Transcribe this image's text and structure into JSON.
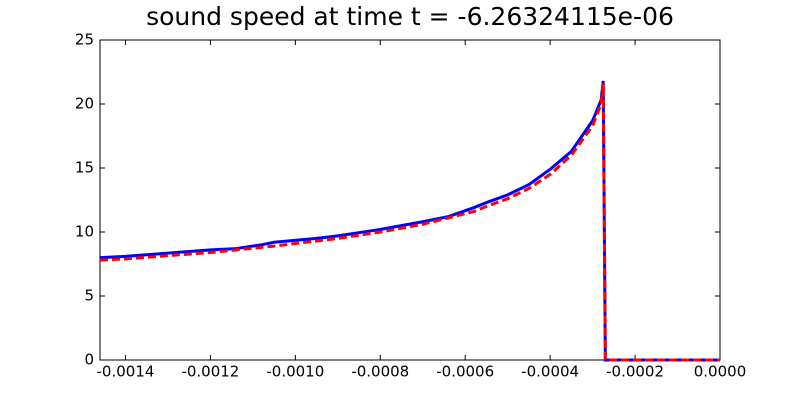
{
  "chart_data": {
    "type": "line",
    "title": "sound speed at time t = -6.26324115e-06",
    "x": [
      -0.00146,
      -0.0014,
      -0.0012,
      -0.00114,
      -0.00108,
      -0.00105,
      -0.00095,
      -0.0009,
      -0.0008,
      -0.0007,
      -0.00064,
      -0.00058,
      -0.00055,
      -0.0005,
      -0.00045,
      -0.0004,
      -0.00035,
      -0.0003,
      -0.00028,
      -0.000275,
      -0.00027,
      0
    ],
    "series": [
      {
        "color": "#0000ff",
        "style": "solid",
        "values": [
          8.0,
          8.1,
          8.6,
          8.7,
          9.0,
          9.2,
          9.5,
          9.7,
          10.2,
          10.8,
          11.2,
          11.9,
          12.3,
          12.9,
          13.7,
          14.9,
          16.3,
          18.7,
          20.3,
          21.8,
          0,
          0
        ]
      },
      {
        "color": "#ff0000",
        "style": "dashed",
        "values": [
          7.8,
          7.9,
          8.4,
          8.6,
          8.8,
          8.9,
          9.3,
          9.5,
          10.0,
          10.6,
          11.1,
          11.6,
          12.0,
          12.6,
          13.4,
          14.5,
          16.0,
          18.3,
          20.0,
          21.6,
          0,
          0
        ]
      }
    ],
    "xlim": [
      -0.00146,
      0
    ],
    "ylim": [
      0,
      25
    ],
    "xticks": [
      {
        "value": -0.0014,
        "label": "-0.0014"
      },
      {
        "value": -0.0012,
        "label": "-0.0012"
      },
      {
        "value": -0.001,
        "label": "-0.0010"
      },
      {
        "value": -0.0008,
        "label": "-0.0008"
      },
      {
        "value": -0.0006,
        "label": "-0.0006"
      },
      {
        "value": -0.0004,
        "label": "-0.0004"
      },
      {
        "value": -0.0002,
        "label": "-0.0002"
      },
      {
        "value": 0,
        "label": "0.0000"
      }
    ],
    "yticks": [
      0,
      5,
      10,
      15,
      20,
      25
    ],
    "grid": false
  }
}
